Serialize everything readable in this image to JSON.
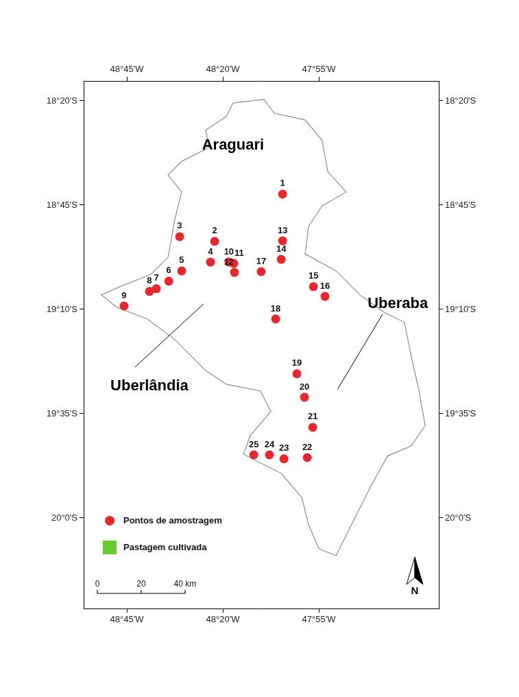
{
  "chart_data": {
    "type": "scatter",
    "xlim": [
      -48.9375,
      -47.396
    ],
    "ylim": [
      -20.362,
      -18.254
    ],
    "xticks": [
      {
        "value": -48.75,
        "label": "48°45'W"
      },
      {
        "value": -48.3333,
        "label": "48°20'W"
      },
      {
        "value": -47.9167,
        "label": "47°55'W"
      }
    ],
    "yticks": [
      {
        "value": -18.3333,
        "label": "18°20'S"
      },
      {
        "value": -18.75,
        "label": "18°45'S"
      },
      {
        "value": -19.1667,
        "label": "19°10'S"
      },
      {
        "value": -19.5833,
        "label": "19°35'S"
      },
      {
        "value": -20,
        "label": "20°0'S"
      }
    ],
    "grid": false,
    "legend": "bottom left",
    "series": [
      {
        "name": "Pontos de amostragem",
        "color": "#e8272c",
        "marker": "circle",
        "labels": [
          "1",
          "2",
          "3",
          "4",
          "5",
          "6",
          "7",
          "8",
          "9",
          "10",
          "11",
          "12",
          "13",
          "14",
          "15",
          "16",
          "17",
          "18",
          "19",
          "20",
          "21",
          "22",
          "23",
          "24",
          "25"
        ],
        "x": [
          -48.074,
          -48.369,
          -48.521,
          -48.387,
          -48.512,
          -48.568,
          -48.622,
          -48.652,
          -48.762,
          -48.307,
          -48.286,
          -48.283,
          -48.074,
          -48.08,
          -47.94,
          -47.89,
          -48.167,
          -48.104,
          -48.012,
          -47.979,
          -47.943,
          -47.967,
          -48.068,
          -48.131,
          -48.199
        ],
        "y": [
          -18.706,
          -18.895,
          -18.876,
          -18.978,
          -19.013,
          -19.054,
          -19.084,
          -19.095,
          -19.153,
          -18.978,
          -18.983,
          -19.019,
          -18.893,
          -18.967,
          -19.076,
          -19.115,
          -19.016,
          -19.205,
          -19.424,
          -19.518,
          -19.638,
          -19.759,
          -19.764,
          -19.748,
          -19.748
        ]
      },
      {
        "name": "Pastagem cultivada",
        "color": "#66cc33",
        "marker": "square",
        "x": [],
        "y": []
      }
    ],
    "boundary": {
      "color": "#8c8c8c",
      "coordinates": [
        [
          -48.289,
          -18.342
        ],
        [
          -48.155,
          -18.328
        ],
        [
          -48.11,
          -18.383
        ],
        [
          -47.976,
          -18.41
        ],
        [
          -47.902,
          -18.492
        ],
        [
          -47.878,
          -18.616
        ],
        [
          -47.798,
          -18.698
        ],
        [
          -47.902,
          -18.753
        ],
        [
          -47.961,
          -18.835
        ],
        [
          -47.976,
          -18.945
        ],
        [
          -47.842,
          -19.013
        ],
        [
          -47.738,
          -19.109
        ],
        [
          -47.634,
          -19.178
        ],
        [
          -47.545,
          -19.219
        ],
        [
          -47.515,
          -19.356
        ],
        [
          -47.485,
          -19.479
        ],
        [
          -47.455,
          -19.63
        ],
        [
          -47.515,
          -19.712
        ],
        [
          -47.619,
          -19.753
        ],
        [
          -47.693,
          -19.877
        ],
        [
          -47.768,
          -20.014
        ],
        [
          -47.842,
          -20.151
        ],
        [
          -47.917,
          -20.123
        ],
        [
          -47.961,
          -20.027
        ],
        [
          -47.991,
          -19.918
        ],
        [
          -48.08,
          -19.822
        ],
        [
          -48.199,
          -19.767
        ],
        [
          -48.244,
          -19.745
        ],
        [
          -48.214,
          -19.671
        ],
        [
          -48.125,
          -19.575
        ],
        [
          -48.17,
          -19.493
        ],
        [
          -48.318,
          -19.466
        ],
        [
          -48.408,
          -19.411
        ],
        [
          -48.542,
          -19.287
        ],
        [
          -48.661,
          -19.205
        ],
        [
          -48.795,
          -19.158
        ],
        [
          -48.86,
          -19.109
        ],
        [
          -48.78,
          -19.076
        ],
        [
          -48.646,
          -19.027
        ],
        [
          -48.571,
          -18.958
        ],
        [
          -48.542,
          -18.808
        ],
        [
          -48.512,
          -18.698
        ],
        [
          -48.571,
          -18.63
        ],
        [
          -48.512,
          -18.575
        ],
        [
          -48.393,
          -18.52
        ],
        [
          -48.408,
          -18.451
        ],
        [
          -48.318,
          -18.396
        ],
        [
          -48.289,
          -18.342
        ]
      ]
    },
    "annotations": [
      {
        "text": "Araguari",
        "x": -48.289,
        "y": -18.512
      },
      {
        "text": "Uberlândia",
        "x": -48.652,
        "y": -19.474,
        "line": [
          [
            -48.714,
            -19.397
          ],
          [
            -48.417,
            -19.145
          ]
        ]
      },
      {
        "text": "Uberaba",
        "x": -47.574,
        "y": -19.145,
        "line": [
          [
            -47.836,
            -19.487
          ],
          [
            -47.64,
            -19.186
          ]
        ]
      }
    ],
    "scale_bar": {
      "ticks": [
        0,
        20,
        {
          "value": 40,
          "label": "40 km"
        }
      ]
    },
    "north_arrow": "N"
  }
}
